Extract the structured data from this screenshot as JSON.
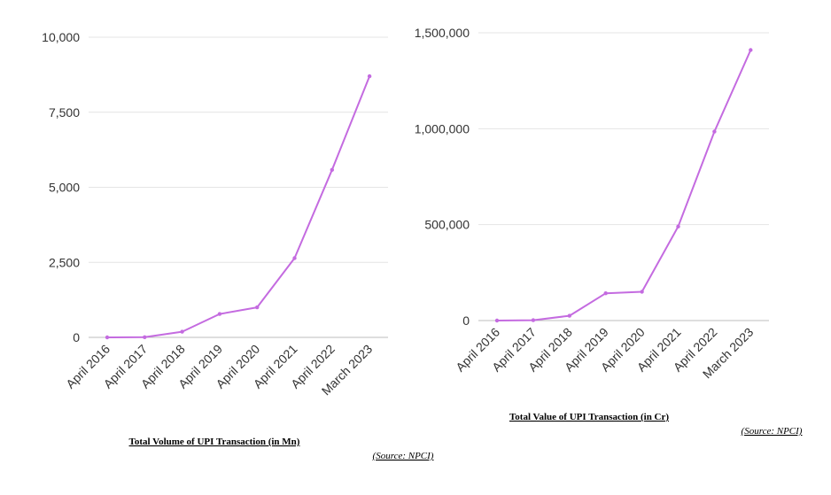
{
  "chart_data": [
    {
      "type": "line",
      "title": "Total Volume of UPI Transaction (in Mn)",
      "source": "(Source: NPCI)",
      "categories": [
        "April 2016",
        "April 2017",
        "April 2018",
        "April 2019",
        "April 2020",
        "April 2021",
        "April 2022",
        "March 2023"
      ],
      "values": [
        0,
        7,
        190,
        780,
        1000,
        2640,
        5580,
        8700
      ],
      "ylim": [
        0,
        10000
      ],
      "yticks": [
        0,
        2500,
        5000,
        7500,
        10000
      ],
      "ytick_labels": [
        "0",
        "2,500",
        "5,000",
        "7,500",
        "10,000"
      ],
      "grid": true,
      "line_color": "#c46be0"
    },
    {
      "type": "line",
      "title": "Total Value of UPI Transaction (in Cr)",
      "source": "(Source: NPCI)",
      "categories": [
        "April 2016",
        "April 2017",
        "April 2018",
        "April 2019",
        "April 2020",
        "April 2021",
        "April 2022",
        "March 2023"
      ],
      "values": [
        0,
        2000,
        25000,
        142000,
        150000,
        490000,
        985000,
        1410000
      ],
      "ylim": [
        0,
        1500000
      ],
      "yticks": [
        0,
        500000,
        1000000,
        1500000
      ],
      "ytick_labels": [
        "0",
        "500,000",
        "1,000,000",
        "1,500,000"
      ],
      "grid": true,
      "line_color": "#c46be0"
    }
  ]
}
